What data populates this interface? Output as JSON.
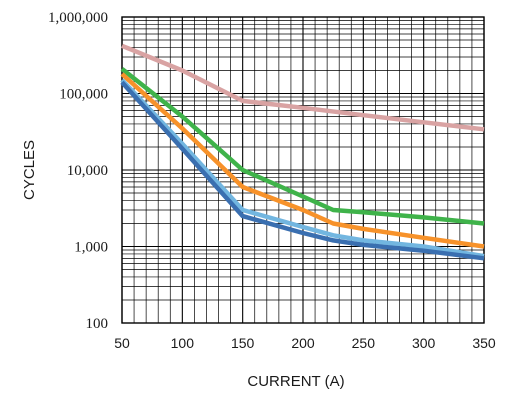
{
  "chart_data": {
    "type": "line",
    "title": "",
    "xlabel": "CURRENT (A)",
    "ylabel": "CYCLES",
    "x_ticks": [
      "50",
      "100",
      "150",
      "200",
      "250",
      "300",
      "350"
    ],
    "y_ticks": [
      "100",
      "1,000",
      "10,000",
      "100,000",
      "1,000,000"
    ],
    "xlim": [
      50,
      350
    ],
    "ylim": [
      100,
      1000000
    ],
    "y_scale": "log",
    "grid": true,
    "legend": "none",
    "series": [
      {
        "color": "#d9a3a3",
        "x": [
          50,
          100,
          150,
          200,
          250,
          300,
          350
        ],
        "y": [
          420000,
          200000,
          80000,
          65000,
          52000,
          42000,
          34000
        ]
      },
      {
        "color": "#3fb34a",
        "x": [
          50,
          100,
          150,
          200,
          225,
          250,
          300,
          350
        ],
        "y": [
          210000,
          50000,
          10000,
          4500,
          3000,
          2800,
          2400,
          2000
        ]
      },
      {
        "color": "#f7922a",
        "x": [
          50,
          100,
          150,
          200,
          225,
          250,
          300,
          350
        ],
        "y": [
          180000,
          35000,
          6000,
          3000,
          2000,
          1700,
          1300,
          1000
        ]
      },
      {
        "color": "#72b6e0",
        "x": [
          50,
          100,
          150,
          200,
          225,
          250,
          300,
          350
        ],
        "y": [
          150000,
          22000,
          3000,
          1800,
          1400,
          1200,
          1000,
          750
        ]
      },
      {
        "color": "#3a6fb0",
        "x": [
          50,
          100,
          150,
          200,
          225,
          250,
          300,
          350
        ],
        "y": [
          140000,
          19000,
          2500,
          1500,
          1200,
          1050,
          880,
          700
        ]
      }
    ]
  }
}
